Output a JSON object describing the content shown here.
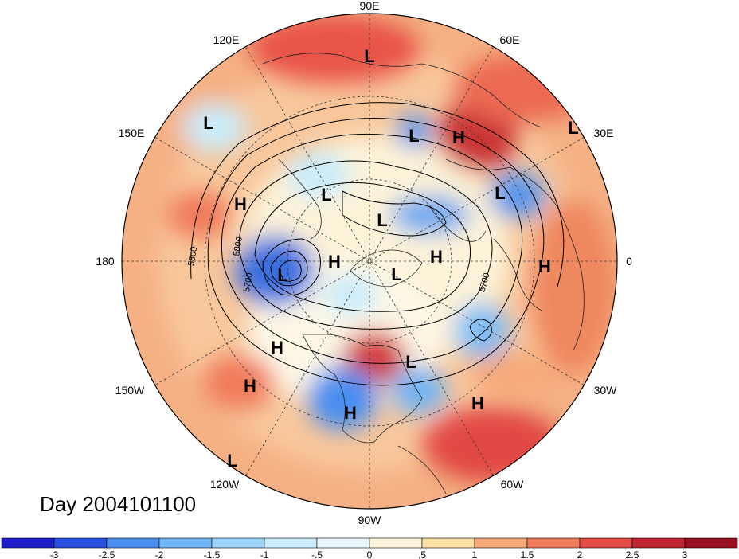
{
  "title": "Day 2004101100",
  "longitude_labels": {
    "90E": "90E",
    "60E": "60E",
    "30E": "30E",
    "0": "0",
    "30W": "30W",
    "60W": "60W",
    "90W": "90W",
    "120W": "120W",
    "150W": "150W",
    "180": "180",
    "150E": "150E",
    "120E": "120E"
  },
  "contour_labels": [
    "5800",
    "5700",
    "5800",
    "5700"
  ],
  "pressure_centers": [
    {
      "type": "L"
    },
    {
      "type": "L"
    },
    {
      "type": "L"
    },
    {
      "type": "H"
    },
    {
      "type": "L"
    },
    {
      "type": "H"
    },
    {
      "type": "L"
    },
    {
      "type": "L"
    },
    {
      "type": "H"
    },
    {
      "type": "L"
    },
    {
      "type": "H"
    },
    {
      "type": "H"
    },
    {
      "type": "L"
    },
    {
      "type": "H"
    },
    {
      "type": "L"
    },
    {
      "type": "H"
    },
    {
      "type": "L"
    },
    {
      "type": "H"
    },
    {
      "type": "H"
    },
    {
      "type": "L"
    }
  ],
  "colorbar": {
    "ticks": [
      "-3",
      "-2.5",
      "-2",
      "-1.5",
      "-1",
      "-.5",
      "0",
      ".5",
      "1",
      "1.5",
      "2",
      "2.5",
      "3"
    ],
    "colors": [
      "#1c1ccb",
      "#2a4fe0",
      "#4a8ff0",
      "#6fb4f4",
      "#9cd4f8",
      "#c9ecfb",
      "#ebf7fc",
      "#fdf5d9",
      "#fbdfa4",
      "#f6a978",
      "#f07a5c",
      "#e24a44",
      "#c02531",
      "#9a1020"
    ]
  }
}
